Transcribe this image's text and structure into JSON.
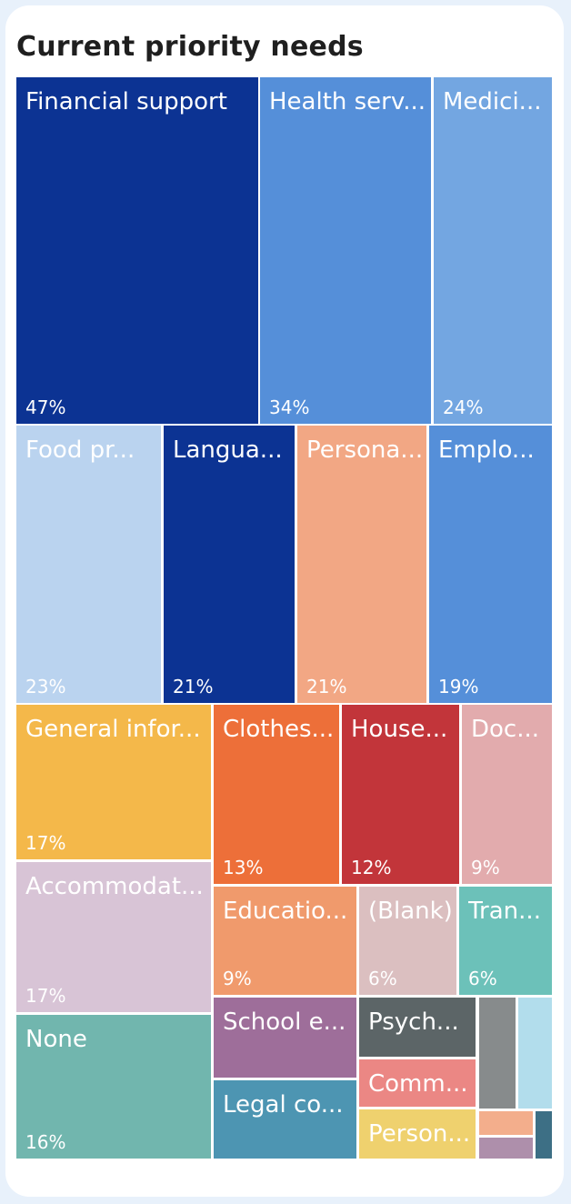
{
  "title": "Current priority needs",
  "chart_data": {
    "type": "treemap",
    "title": "Current priority needs",
    "items": [
      {
        "label": "Financial support",
        "value": "47%",
        "color": "#0c3393",
        "text": "#ffffff"
      },
      {
        "label": "Health serv...",
        "value": "34%",
        "color": "#558fd9",
        "text": "#ffffff"
      },
      {
        "label": "Medici...",
        "value": "24%",
        "color": "#73a6e1",
        "text": "#ffffff"
      },
      {
        "label": "Food pr...",
        "value": "23%",
        "color": "#bad3ef",
        "text": "#ffffff"
      },
      {
        "label": "Langua...",
        "value": "21%",
        "color": "#0c3393",
        "text": "#ffffff"
      },
      {
        "label": "Persona...",
        "value": "21%",
        "color": "#f2a784",
        "text": "#ffffff"
      },
      {
        "label": "Emplo...",
        "value": "19%",
        "color": "#558fd9",
        "text": "#ffffff"
      },
      {
        "label": "General infor...",
        "value": "17%",
        "color": "#f4b84a",
        "text": "#ffffff"
      },
      {
        "label": "Clothes...",
        "value": "13%",
        "color": "#ed6f39",
        "text": "#ffffff"
      },
      {
        "label": "House...",
        "value": "12%",
        "color": "#c2353a",
        "text": "#ffffff"
      },
      {
        "label": "Doc...",
        "value": "9%",
        "color": "#e2abad",
        "text": "#ffffff"
      },
      {
        "label": "Accommodat...",
        "value": "17%",
        "color": "#d8c4d6",
        "text": "#ffffff"
      },
      {
        "label": "Educatio...",
        "value": "9%",
        "color": "#f09a6c",
        "text": "#ffffff"
      },
      {
        "label": "(Blank)",
        "value": "6%",
        "color": "#dbbfc0",
        "text": "#ffffff"
      },
      {
        "label": "Tran...",
        "value": "6%",
        "color": "#6cc1b9",
        "text": "#ffffff"
      },
      {
        "label": "None",
        "value": "16%",
        "color": "#71b6ae",
        "text": "#ffffff"
      },
      {
        "label": "School e...",
        "value": "",
        "color": "#9e6e9a",
        "text": "#ffffff"
      },
      {
        "label": "Psych...",
        "value": "",
        "color": "#5c6567",
        "text": "#ffffff"
      },
      {
        "label": "",
        "value": "",
        "color": "#878b8c",
        "text": "#ffffff"
      },
      {
        "label": "",
        "value": "",
        "color": "#b2ddec",
        "text": "#ffffff"
      },
      {
        "label": "Comm...",
        "value": "",
        "color": "#eb8784",
        "text": "#ffffff"
      },
      {
        "label": "Legal co...",
        "value": "",
        "color": "#4d95b2",
        "text": "#ffffff"
      },
      {
        "label": "Person...",
        "value": "",
        "color": "#efd16e",
        "text": "#ffffff"
      },
      {
        "label": "",
        "value": "",
        "color": "#f3ae8c",
        "text": "#ffffff"
      },
      {
        "label": "",
        "value": "",
        "color": "#ae8fab",
        "text": "#ffffff"
      },
      {
        "label": "",
        "value": "",
        "color": "#3d6f85",
        "text": "#ffffff"
      }
    ]
  }
}
